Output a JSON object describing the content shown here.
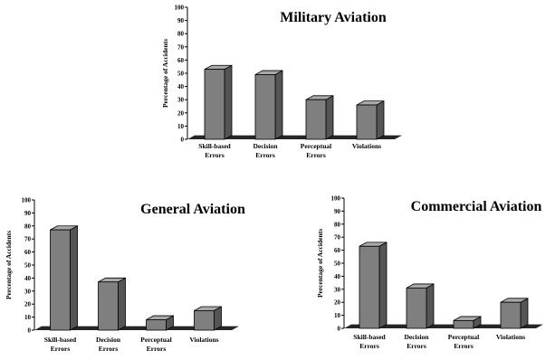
{
  "colors": {
    "bar_front": "#7f7f7f",
    "bar_top": "#a9a9a9",
    "bar_side": "#555555",
    "floor": "#262626"
  },
  "chart_data": [
    {
      "type": "bar",
      "title": "Military Aviation",
      "ylabel": "Percentage of Accidents",
      "ylim": [
        0,
        100
      ],
      "yticks": [
        "0",
        "10",
        "20",
        "30",
        "40",
        "50",
        "60",
        "70",
        "80",
        "90",
        "100"
      ],
      "categories": [
        [
          "Skill-based",
          "Errors"
        ],
        [
          "Decision",
          "Errors"
        ],
        [
          "Perceptual",
          "Errors"
        ],
        [
          "Violations"
        ]
      ],
      "values": [
        53,
        49,
        30,
        26
      ],
      "grid": false,
      "style": "3d"
    },
    {
      "type": "bar",
      "title": "General Aviation",
      "ylabel": "Percentage of Accidents",
      "ylim": [
        0,
        100
      ],
      "yticks": [
        "0",
        "10",
        "20",
        "30",
        "40",
        "50",
        "60",
        "70",
        "80",
        "90",
        "100"
      ],
      "categories": [
        [
          "Skill-based",
          "Errors"
        ],
        [
          "Decision",
          "Errors"
        ],
        [
          "Perceptual",
          "Errors"
        ],
        [
          "Violations"
        ]
      ],
      "values": [
        77,
        37,
        8,
        15
      ],
      "grid": false,
      "style": "3d"
    },
    {
      "type": "bar",
      "title": "Commercial Aviation",
      "ylabel": "Percentage of Accidents",
      "ylim": [
        0,
        100
      ],
      "yticks": [
        "0",
        "10",
        "20",
        "30",
        "40",
        "50",
        "60",
        "70",
        "80",
        "90",
        "100"
      ],
      "categories": [
        [
          "Skill-based",
          "Errors"
        ],
        [
          "Decision",
          "Errors"
        ],
        [
          "Perceptual",
          "Errors"
        ],
        [
          "Violations"
        ]
      ],
      "values": [
        63,
        31,
        6,
        20
      ],
      "grid": false,
      "style": "3d"
    }
  ]
}
